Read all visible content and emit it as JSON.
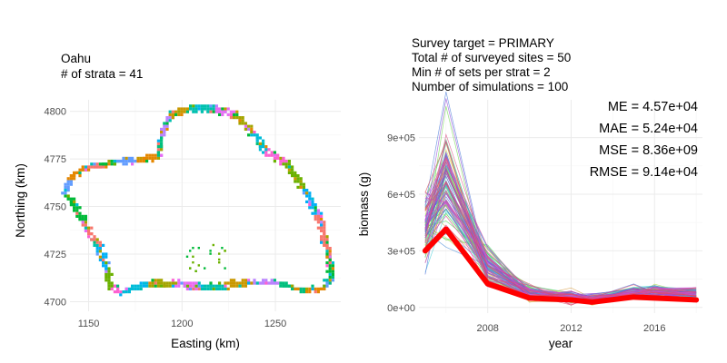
{
  "chart_data": [
    {
      "type": "map",
      "title_lines": [
        "Oahu",
        "# of strata = 41"
      ],
      "xlabel": "Easting (km)",
      "ylabel": "Northing (km)",
      "xlim": [
        1140,
        1285
      ],
      "ylim": [
        4695,
        4806
      ],
      "xticks": [
        1150,
        1200,
        1250
      ],
      "xtick_labels": [
        "1150",
        "1200",
        "1250"
      ],
      "yticks": [
        4700,
        4725,
        4750,
        4775,
        4800
      ],
      "ytick_labels": [
        "4700",
        "4725",
        "4750",
        "4775",
        "4800"
      ],
      "grid": true,
      "legend": "none",
      "coastline_km": [
        [
          1148,
          4772
        ],
        [
          1156,
          4773
        ],
        [
          1165,
          4775
        ],
        [
          1175,
          4776
        ],
        [
          1186,
          4778
        ],
        [
          1188,
          4790
        ],
        [
          1193,
          4800
        ],
        [
          1204,
          4803
        ],
        [
          1218,
          4803
        ],
        [
          1228,
          4800
        ],
        [
          1238,
          4790
        ],
        [
          1246,
          4780
        ],
        [
          1256,
          4774
        ],
        [
          1266,
          4760
        ],
        [
          1274,
          4745
        ],
        [
          1279,
          4725
        ],
        [
          1280,
          4712
        ],
        [
          1275,
          4707
        ],
        [
          1265,
          4706
        ],
        [
          1250,
          4710
        ],
        [
          1236,
          4710
        ],
        [
          1222,
          4708
        ],
        [
          1208,
          4707
        ],
        [
          1195,
          4709
        ],
        [
          1180,
          4709
        ],
        [
          1166,
          4705
        ],
        [
          1160,
          4708
        ],
        [
          1158,
          4718
        ],
        [
          1153,
          4730
        ],
        [
          1146,
          4742
        ],
        [
          1136,
          4758
        ],
        [
          1138,
          4766
        ],
        [
          1148,
          4772
        ]
      ],
      "strata_colors": [
        "#F8766D",
        "#E58700",
        "#C99800",
        "#A3A500",
        "#6BB100",
        "#00BA38",
        "#00BF7D",
        "#00C0AF",
        "#00BCD8",
        "#00B0F6",
        "#619CFF",
        "#B983FF",
        "#E76BF3",
        "#FD61D1"
      ]
    },
    {
      "type": "line",
      "title_lines": [
        "Survey target = PRIMARY",
        "Total # of surveyed sites = 50",
        "Min # of sets per strat = 2",
        "Number of simulations = 100"
      ],
      "stats_lines": [
        "ME = 4.57e+04",
        "MAE = 5.24e+04",
        "MSE = 8.36e+09",
        "RMSE = 9.14e+04"
      ],
      "xlabel": "year",
      "ylabel": "biomass (g)",
      "xlim": [
        2004.7,
        2018.3
      ],
      "ylim": [
        -30000,
        1100000
      ],
      "xticks": [
        2008,
        2012,
        2016
      ],
      "xtick_labels": [
        "2008",
        "2012",
        "2016"
      ],
      "yticks": [
        0,
        300000,
        600000,
        900000
      ],
      "ytick_labels": [
        "0e+00",
        "3e+05",
        "6e+05",
        "9e+05"
      ],
      "grid": true,
      "legend": "none",
      "x": [
        2005,
        2006,
        2008,
        2010,
        2012,
        2013,
        2015,
        2016,
        2018
      ],
      "truth": {
        "values": [
          300000,
          415000,
          125000,
          50000,
          40000,
          28000,
          55000,
          50000,
          40000
        ],
        "color": "#FF0000"
      },
      "simulations": {
        "count": 100,
        "mean_values": [
          430000,
          650000,
          225000,
          75000,
          55000,
          45000,
          80000,
          85000,
          70000
        ],
        "spread_values": [
          100000,
          150000,
          45000,
          22000,
          15000,
          12000,
          18000,
          18000,
          15000
        ]
      }
    }
  ]
}
